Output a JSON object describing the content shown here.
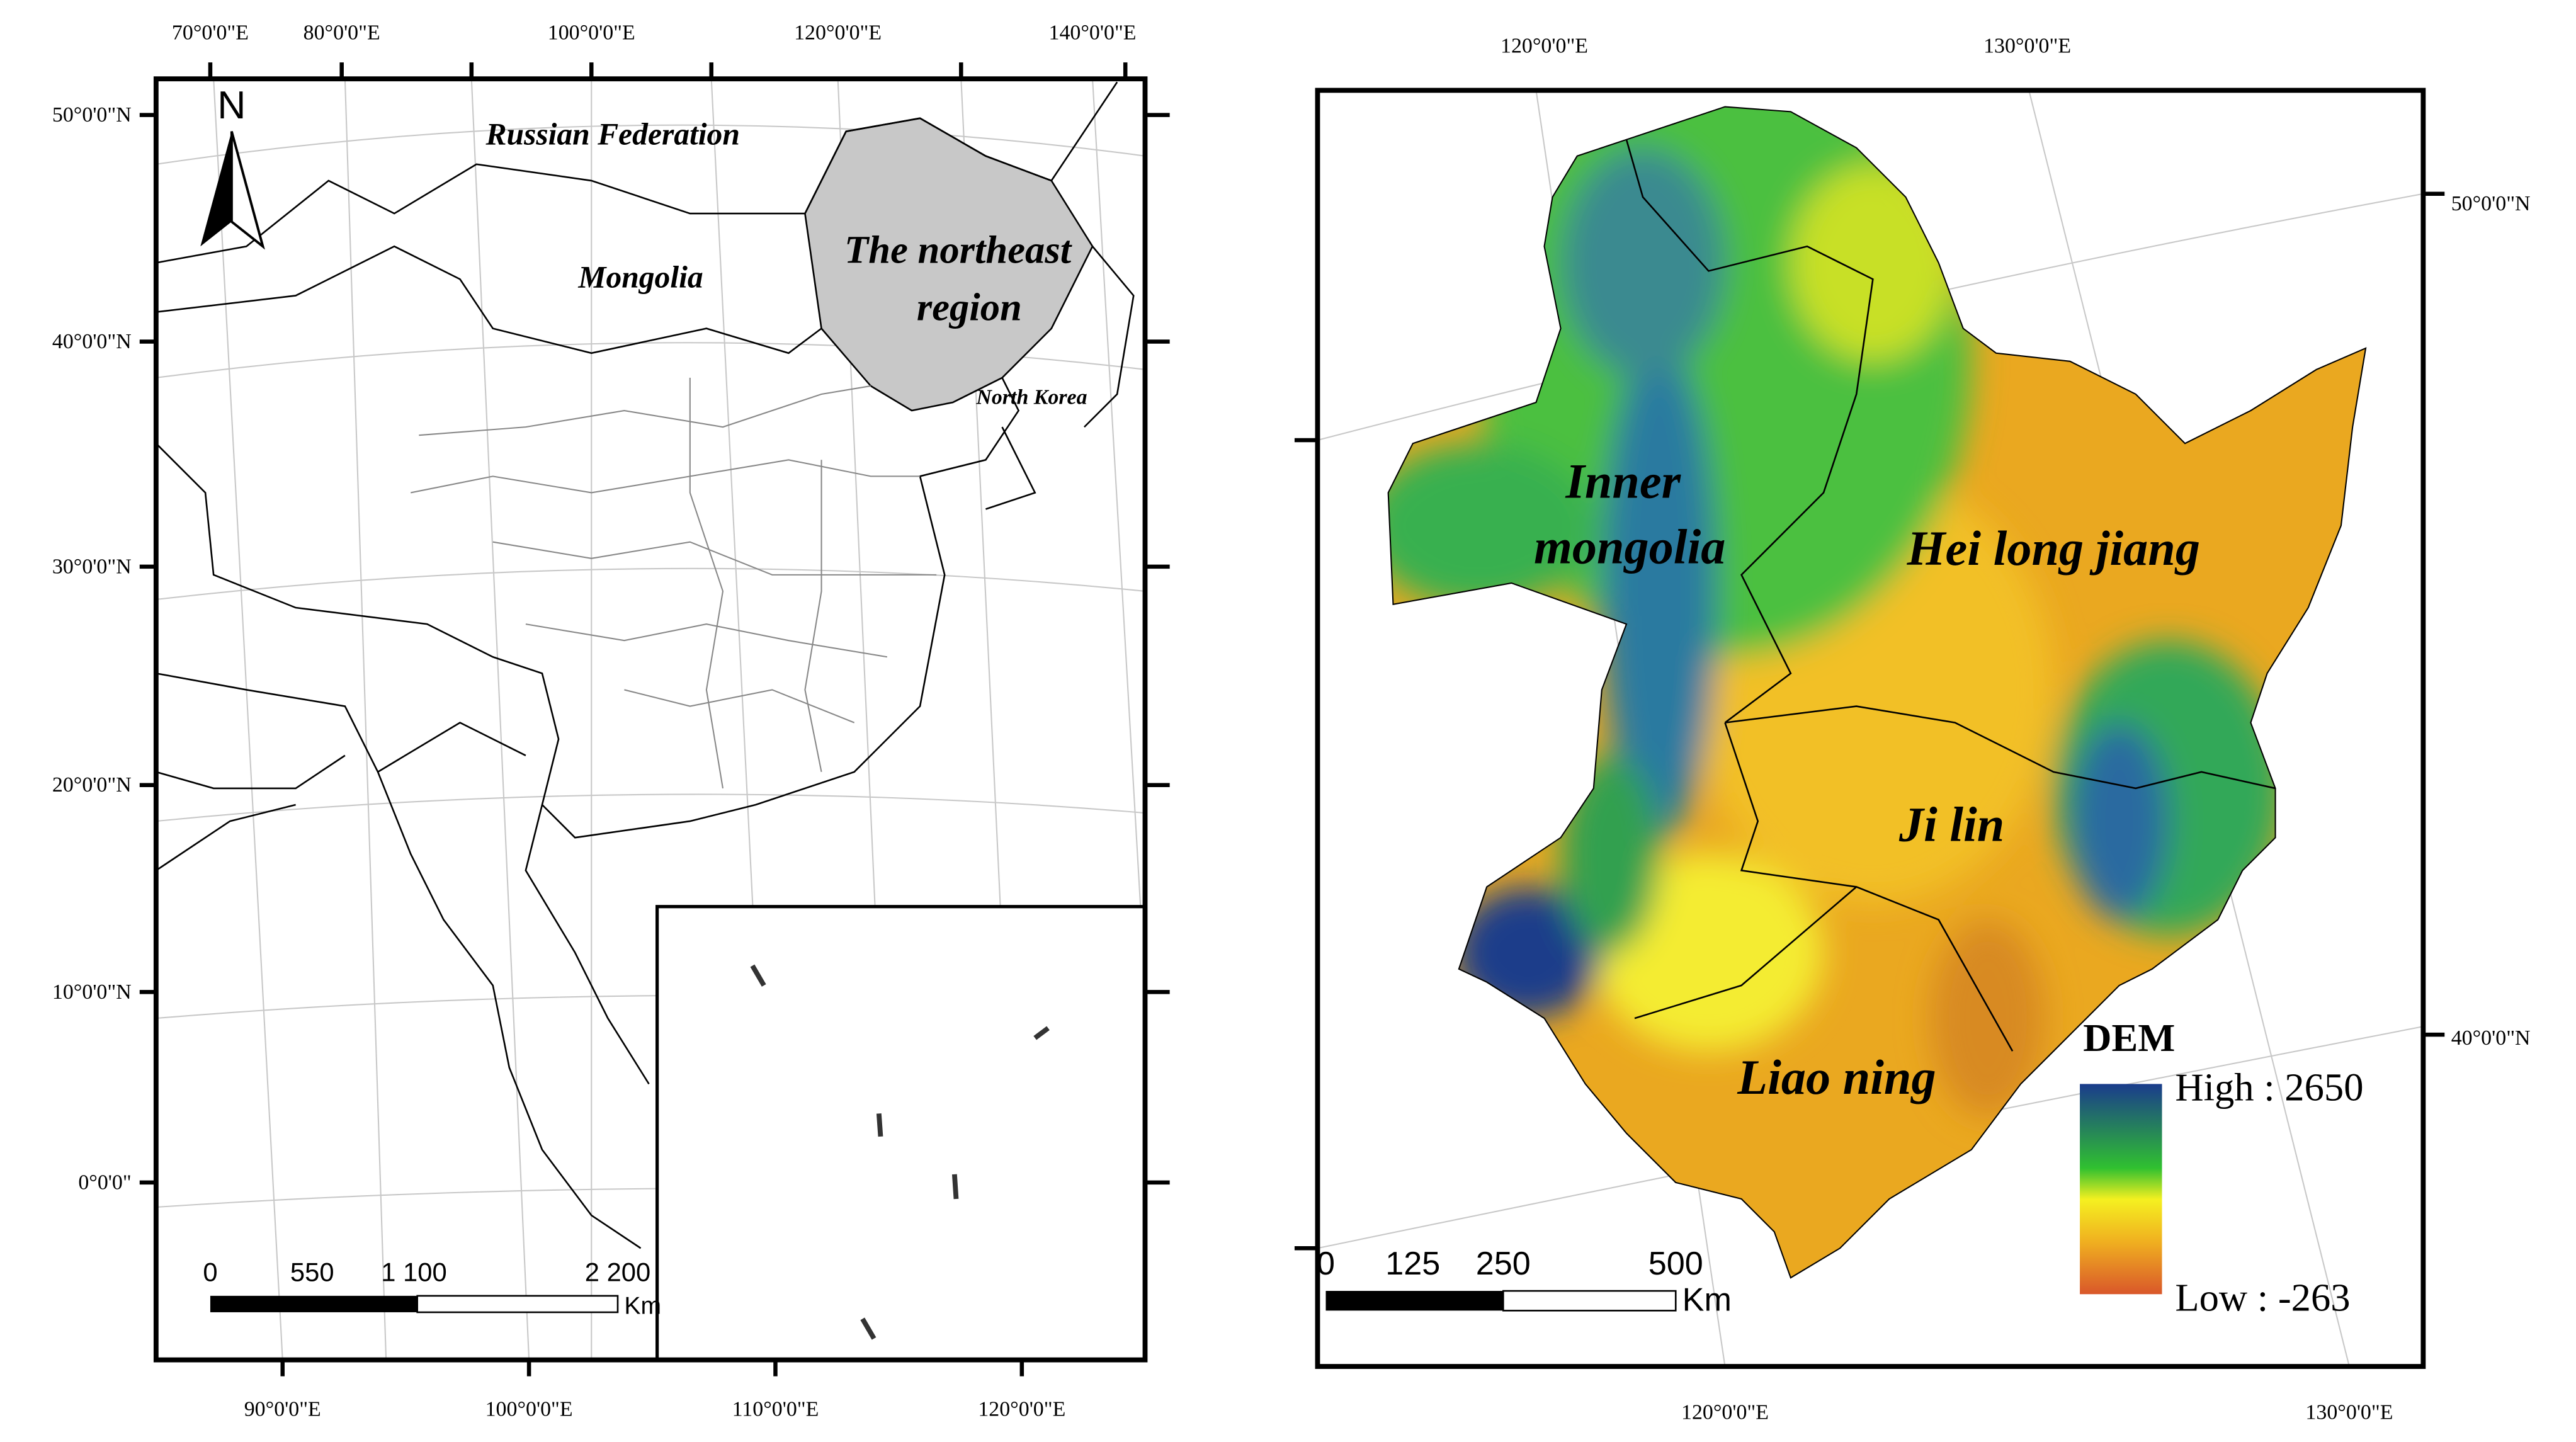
{
  "left_map": {
    "top_ticks": [
      "70°0'0\"E",
      "80°0'0\"E",
      "100°0'0\"E",
      "120°0'0\"E",
      "140°0'0\"E"
    ],
    "bottom_ticks": [
      "90°0'0\"E",
      "100°0'0\"E",
      "110°0'0\"E",
      "120°0'0\"E"
    ],
    "left_ticks": [
      "50°0'0\"N",
      "40°0'0\"N",
      "30°0'0\"N",
      "20°0'0\"N",
      "10°0'0\"N",
      "0°0'0\""
    ],
    "north_arrow": "N",
    "labels": {
      "russia": "Russian Federation",
      "mongolia": "Mongolia",
      "northeast_line1": "The northeast",
      "northeast_line2": "region",
      "north_korea": "North Korea"
    },
    "scale_bar": {
      "ticks": [
        "0",
        "550",
        "1 100",
        "2 200"
      ],
      "unit": "Km"
    }
  },
  "right_map": {
    "top_ticks": [
      "120°0'0\"E",
      "130°0'0\"E"
    ],
    "bottom_ticks": [
      "120°0'0\"E",
      "130°0'0\"E"
    ],
    "right_ticks": [
      "50°0'0\"N",
      "40°0'0\"N"
    ],
    "labels": {
      "inner_line1": "Inner",
      "inner_line2": "mongolia",
      "heilongjiang": "Hei long jiang",
      "jilin": "Ji lin",
      "liaoning": "Liao ning"
    },
    "legend": {
      "title": "DEM",
      "high": "High : 2650",
      "low": "Low : -263"
    },
    "scale_bar": {
      "ticks": [
        "0",
        "125",
        "250",
        "500"
      ],
      "unit": "Km"
    }
  }
}
